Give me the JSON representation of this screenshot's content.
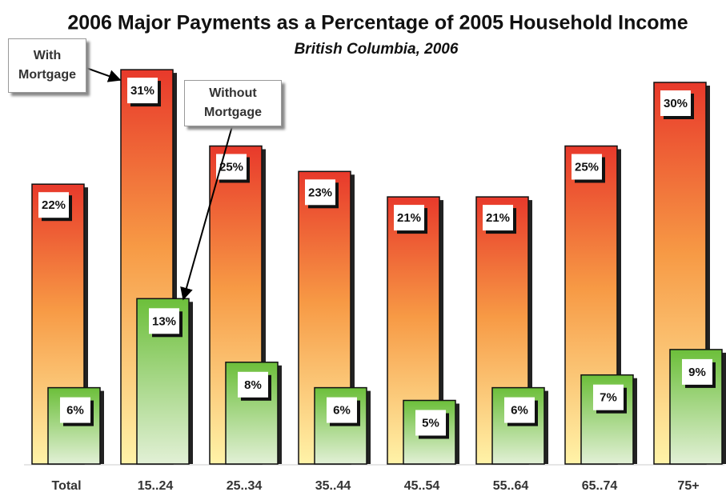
{
  "chart_data": {
    "type": "bar",
    "title": "2006 Major Payments as a Percentage of 2005 Household Income",
    "subtitle": "British Columbia, 2006",
    "categories": [
      "Total",
      "15..24",
      "25..34",
      "35..44",
      "45..54",
      "55..64",
      "65..74",
      "75+"
    ],
    "series": [
      {
        "name": "With Mortgage",
        "color": "#e8392b",
        "values": [
          22,
          31,
          25,
          23,
          21,
          21,
          25,
          30
        ],
        "value_labels": [
          "22%",
          "31%",
          "25%",
          "23%",
          "21%",
          "21%",
          "25%",
          "30%"
        ]
      },
      {
        "name": "Without Mortgage",
        "color": "#6cbf3a",
        "values": [
          6,
          13,
          8,
          6,
          5,
          6,
          7,
          9
        ],
        "value_labels": [
          "6%",
          "13%",
          "8%",
          "6%",
          "5%",
          "6%",
          "7%",
          "9%"
        ]
      }
    ]
  }
}
